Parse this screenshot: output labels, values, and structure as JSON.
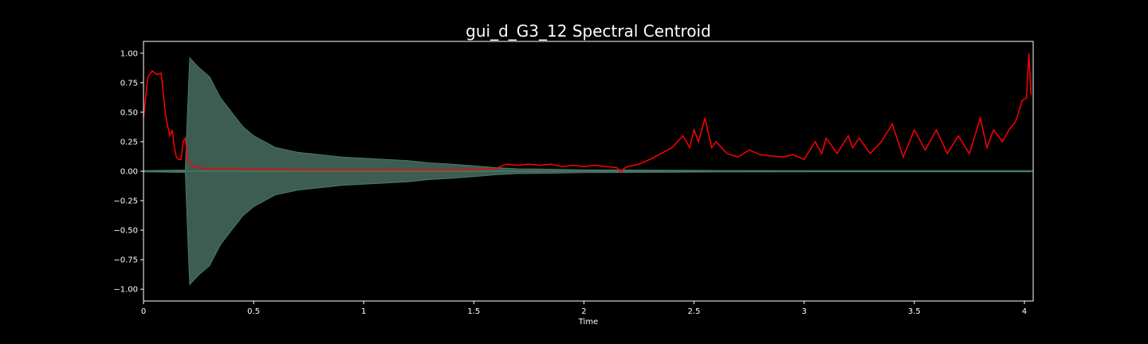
{
  "chart_data": {
    "type": "line",
    "title": "gui_d_G3_12 Spectral Centroid",
    "xlabel": "Time",
    "ylabel": "",
    "xlim": [
      0,
      4.04
    ],
    "ylim": [
      -1.1,
      1.1
    ],
    "x_ticks": [
      0,
      0.5,
      1,
      1.5,
      2,
      2.5,
      3,
      3.5,
      4
    ],
    "x_tick_labels": [
      "0",
      "0.5",
      "1",
      "1.5",
      "2",
      "2.5",
      "3",
      "3.5",
      "4"
    ],
    "y_ticks": [
      1.0,
      0.75,
      0.5,
      0.25,
      0.0,
      -0.25,
      -0.5,
      -0.75,
      -1.0
    ],
    "y_tick_labels": [
      "1.00",
      "0.75",
      "0.50",
      "0.25",
      "0.00",
      "−0.25",
      "−0.50",
      "−0.75",
      "−1.00"
    ],
    "grid": false,
    "colors": {
      "background": "#000000",
      "axes": "#ffffff",
      "waveform": "#4a7a6b",
      "waveform_fill": "#3d5c52",
      "centroid": "#ff0000"
    },
    "waveform_envelope": {
      "t": [
        0,
        0.19,
        0.2,
        0.21,
        0.25,
        0.3,
        0.35,
        0.4,
        0.45,
        0.5,
        0.6,
        0.7,
        0.8,
        0.9,
        1.0,
        1.1,
        1.2,
        1.3,
        1.4,
        1.5,
        1.6,
        1.7,
        1.8,
        1.9,
        2.0,
        2.2,
        2.4,
        2.6,
        3.0,
        3.5,
        4.03
      ],
      "amplitude": [
        0.005,
        0.01,
        0.5,
        0.96,
        0.88,
        0.8,
        0.62,
        0.5,
        0.38,
        0.3,
        0.2,
        0.16,
        0.14,
        0.12,
        0.11,
        0.1,
        0.09,
        0.07,
        0.06,
        0.045,
        0.03,
        0.02,
        0.018,
        0.015,
        0.012,
        0.01,
        0.008,
        0.006,
        0.005,
        0.005,
        0.005
      ]
    },
    "series": [
      {
        "x": [
          0.0,
          0.02,
          0.04,
          0.06,
          0.08,
          0.1,
          0.11,
          0.12,
          0.13,
          0.14,
          0.15,
          0.16,
          0.17,
          0.18,
          0.19,
          0.2,
          0.21,
          0.22,
          0.25,
          0.3,
          0.4,
          0.5,
          0.6,
          0.7,
          0.8,
          0.9,
          1.0,
          1.1,
          1.2,
          1.3,
          1.4,
          1.5,
          1.6,
          1.62,
          1.65,
          1.7,
          1.75,
          1.8,
          1.85,
          1.9,
          1.95,
          2.0,
          2.05,
          2.1,
          2.15,
          2.17,
          2.18,
          2.2,
          2.25,
          2.3,
          2.35,
          2.4,
          2.45,
          2.48,
          2.5,
          2.52,
          2.55,
          2.58,
          2.6,
          2.65,
          2.7,
          2.75,
          2.8,
          2.85,
          2.9,
          2.95,
          3.0,
          3.05,
          3.08,
          3.1,
          3.15,
          3.2,
          3.22,
          3.25,
          3.3,
          3.35,
          3.4,
          3.45,
          3.5,
          3.55,
          3.6,
          3.65,
          3.7,
          3.75,
          3.8,
          3.83,
          3.86,
          3.9,
          3.93,
          3.96,
          3.99,
          4.01,
          4.02,
          4.03
        ],
        "values": [
          0.45,
          0.8,
          0.85,
          0.82,
          0.83,
          0.48,
          0.38,
          0.3,
          0.35,
          0.2,
          0.12,
          0.1,
          0.1,
          0.25,
          0.28,
          0.1,
          0.08,
          0.05,
          0.03,
          0.02,
          0.02,
          0.015,
          0.015,
          0.01,
          0.01,
          0.01,
          0.01,
          0.01,
          0.01,
          0.01,
          0.01,
          0.015,
          0.02,
          0.04,
          0.06,
          0.05,
          0.06,
          0.05,
          0.06,
          0.04,
          0.05,
          0.04,
          0.05,
          0.04,
          0.03,
          -0.01,
          0.02,
          0.04,
          0.06,
          0.1,
          0.15,
          0.2,
          0.3,
          0.2,
          0.35,
          0.25,
          0.45,
          0.2,
          0.25,
          0.15,
          0.12,
          0.18,
          0.14,
          0.13,
          0.12,
          0.14,
          0.1,
          0.25,
          0.15,
          0.28,
          0.15,
          0.3,
          0.2,
          0.28,
          0.15,
          0.25,
          0.4,
          0.12,
          0.35,
          0.18,
          0.35,
          0.15,
          0.3,
          0.15,
          0.45,
          0.2,
          0.35,
          0.25,
          0.35,
          0.42,
          0.6,
          0.62,
          1.0,
          0.65
        ]
      }
    ]
  }
}
